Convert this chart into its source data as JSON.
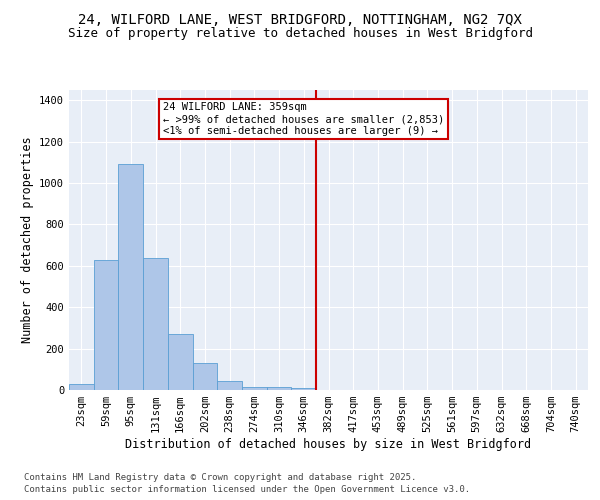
{
  "title_line1": "24, WILFORD LANE, WEST BRIDGFORD, NOTTINGHAM, NG2 7QX",
  "title_line2": "Size of property relative to detached houses in West Bridgford",
  "xlabel": "Distribution of detached houses by size in West Bridgford",
  "ylabel": "Number of detached properties",
  "bin_labels": [
    "23sqm",
    "59sqm",
    "95sqm",
    "131sqm",
    "166sqm",
    "202sqm",
    "238sqm",
    "274sqm",
    "310sqm",
    "346sqm",
    "382sqm",
    "417sqm",
    "453sqm",
    "489sqm",
    "525sqm",
    "561sqm",
    "597sqm",
    "632sqm",
    "668sqm",
    "704sqm",
    "740sqm"
  ],
  "bar_heights": [
    30,
    630,
    1090,
    640,
    270,
    130,
    45,
    15,
    15,
    10,
    0,
    0,
    0,
    0,
    0,
    0,
    0,
    0,
    0,
    0,
    0
  ],
  "bar_color": "#aec6e8",
  "bar_edge_color": "#5a9fd4",
  "vline_x": 9.5,
  "vline_color": "#cc0000",
  "annotation_title": "24 WILFORD LANE: 359sqm",
  "annotation_line1": "← >99% of detached houses are smaller (2,853)",
  "annotation_line2": "<1% of semi-detached houses are larger (9) →",
  "annotation_box_color": "#cc0000",
  "ylim": [
    0,
    1450
  ],
  "yticks": [
    0,
    200,
    400,
    600,
    800,
    1000,
    1200,
    1400
  ],
  "bg_color": "#e8eef7",
  "footer_line1": "Contains HM Land Registry data © Crown copyright and database right 2025.",
  "footer_line2": "Contains public sector information licensed under the Open Government Licence v3.0.",
  "title_fontsize": 10,
  "subtitle_fontsize": 9,
  "axis_label_fontsize": 8.5,
  "tick_fontsize": 7.5,
  "footer_fontsize": 6.5
}
